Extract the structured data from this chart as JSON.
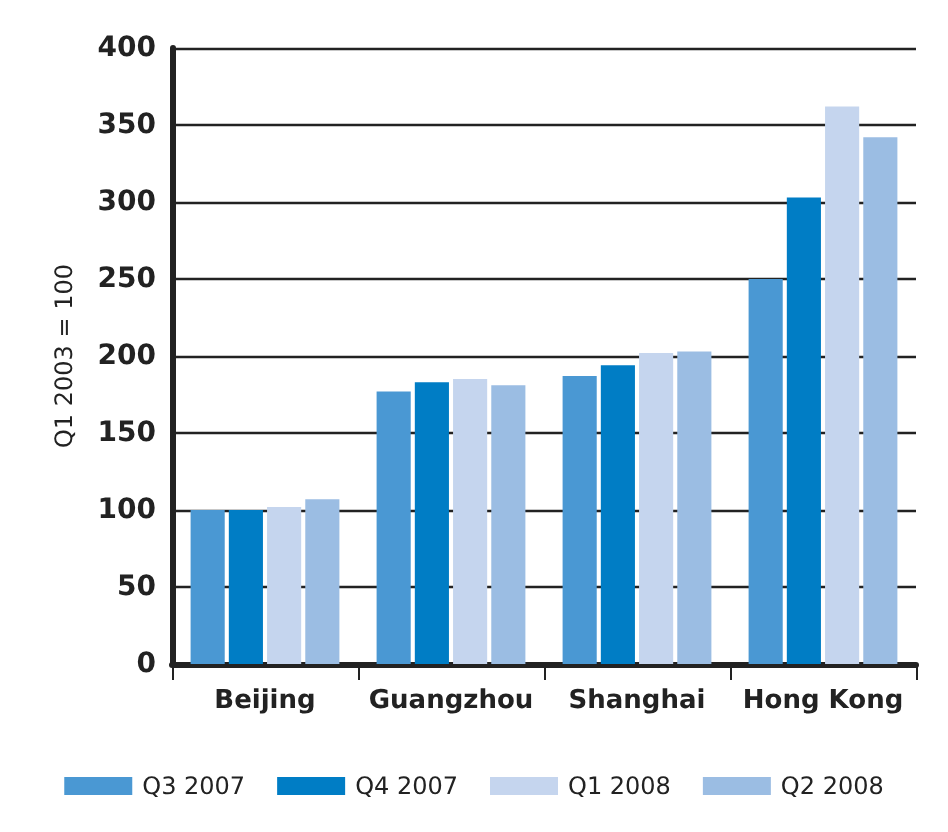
{
  "chart_data": {
    "type": "bar",
    "ylabel": "Q1 2003 = 100",
    "categories": [
      "Beijing",
      "Guangzhou",
      "Shanghai",
      "Hong Kong"
    ],
    "series": [
      {
        "name": "Q3 2007",
        "color": "#4a98d3",
        "values": [
          100,
          177,
          187,
          250
        ]
      },
      {
        "name": "Q4 2007",
        "color": "#007dc5",
        "values": [
          100,
          183,
          194,
          303
        ]
      },
      {
        "name": "Q1 2008",
        "color": "#c5d5ee",
        "values": [
          102,
          185,
          202,
          362
        ]
      },
      {
        "name": "Q2 2008",
        "color": "#9bbde3",
        "values": [
          107,
          181,
          203,
          342
        ]
      }
    ],
    "ylim": [
      0,
      400
    ],
    "yticks": [
      0,
      50,
      100,
      150,
      200,
      250,
      300,
      350,
      400
    ],
    "grid": "y",
    "legend": "bottom"
  }
}
